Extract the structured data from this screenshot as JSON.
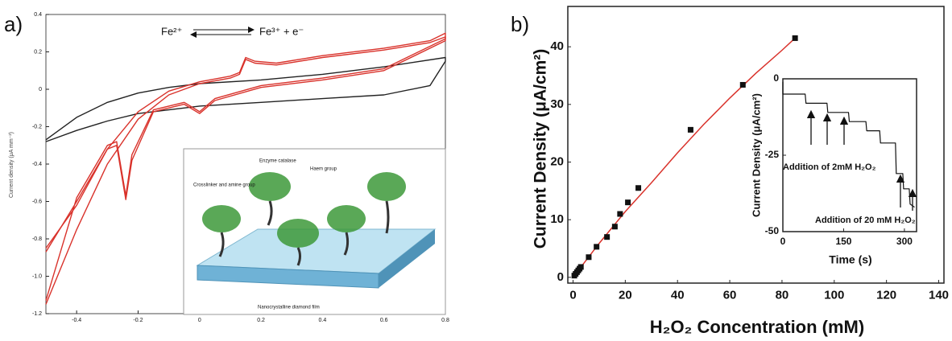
{
  "chart_data": [
    {
      "type": "line",
      "panel_label": "a)",
      "y_label": "Current density (μA mm⁻²)",
      "annotations": [
        "Fe²⁺",
        "Fe³⁺ + e⁻",
        "Enzyme catalase",
        "Haem group",
        "Crosslinker and amine group",
        "Nanocrystalline diamond film"
      ],
      "xlim": [
        -0.5,
        0.8
      ],
      "ylim": [
        -1.2,
        0.4
      ],
      "xticks": [
        -0.4,
        -0.2,
        0,
        0.2,
        0.4,
        0.6,
        0.8
      ],
      "yticks": [
        0.4,
        0.2,
        0,
        -0.2,
        -0.4,
        -0.6,
        -0.8,
        {
          "value": -1,
          "label": "-1.0"
        },
        -1.2
      ],
      "series": [
        {
          "color": "#222222",
          "x": [
            -0.5,
            -0.4,
            -0.3,
            -0.2,
            -0.1,
            0,
            0.2,
            0.4,
            0.6,
            0.8,
            0.8,
            0.75,
            0.6,
            0.4,
            0.2,
            0,
            -0.2,
            -0.3,
            -0.4,
            -0.5
          ],
          "values": [
            -0.27,
            -0.15,
            -0.07,
            -0.02,
            0.01,
            0.03,
            0.05,
            0.08,
            0.12,
            0.17,
            0.15,
            0.02,
            -0.03,
            -0.05,
            -0.07,
            -0.09,
            -0.13,
            -0.17,
            -0.22,
            -0.28
          ]
        },
        {
          "color": "#d9322b",
          "x": [
            -0.5,
            -0.4,
            -0.3,
            -0.2,
            -0.1,
            0,
            0.1,
            0.13,
            0.15,
            0.18,
            0.25,
            0.4,
            0.6,
            0.75,
            0.8,
            0.8,
            0.6,
            0.4,
            0.2,
            0.05,
            0,
            -0.05,
            -0.15,
            -0.22,
            -0.24,
            -0.27,
            -0.3,
            -0.4,
            -0.5
          ],
          "values": [
            -0.87,
            -0.6,
            -0.32,
            -0.12,
            -0.01,
            0.04,
            0.07,
            0.09,
            0.17,
            0.15,
            0.14,
            0.18,
            0.22,
            0.26,
            0.3,
            0.27,
            0.11,
            0.06,
            0.02,
            -0.05,
            -0.12,
            -0.07,
            -0.11,
            -0.35,
            -0.57,
            -0.28,
            -0.3,
            -0.58,
            -1.13
          ]
        },
        {
          "color": "#d9322b",
          "x": [
            -0.5,
            -0.4,
            -0.3,
            -0.2,
            -0.1,
            0,
            0.1,
            0.13,
            0.15,
            0.18,
            0.25,
            0.4,
            0.6,
            0.75,
            0.8,
            0.8,
            0.6,
            0.4,
            0.2,
            0.05,
            0,
            -0.05,
            -0.15,
            -0.22,
            -0.24,
            -0.27,
            -0.3,
            -0.4,
            -0.5
          ],
          "values": [
            -1.15,
            -0.75,
            -0.4,
            -0.16,
            -0.03,
            0.03,
            0.06,
            0.08,
            0.16,
            0.14,
            0.13,
            0.17,
            0.21,
            0.25,
            0.28,
            0.26,
            0.1,
            0.05,
            0.01,
            -0.06,
            -0.13,
            -0.08,
            -0.12,
            -0.38,
            -0.59,
            -0.3,
            -0.32,
            -0.62,
            -0.85
          ]
        }
      ]
    },
    {
      "type": "scatter",
      "panel_label": "b)",
      "x_label": "H₂O₂ Concentration (mM)",
      "y_label": "Current Density (μA/cm²)",
      "xlim": [
        -2,
        142
      ],
      "ylim": [
        -1,
        47
      ],
      "xticks": [
        0,
        20,
        40,
        60,
        80,
        100,
        120,
        140
      ],
      "yticks": [
        0,
        10,
        20,
        30,
        40
      ],
      "series": [
        {
          "style": "line",
          "color": "#d9322b",
          "x": [
            0,
            10,
            20,
            30,
            40,
            50,
            60,
            70,
            80,
            85
          ],
          "values": [
            0,
            5.9,
            11.4,
            16.4,
            21.6,
            26.5,
            31.1,
            35.4,
            39.4,
            41.5
          ]
        },
        {
          "style": "marker",
          "color": "#111111",
          "x": [
            0.5,
            1,
            1.5,
            2,
            2.5,
            3,
            6,
            9,
            13,
            16,
            18,
            21,
            25,
            45,
            65,
            85
          ],
          "values": [
            0.3,
            0.6,
            0.9,
            1.2,
            1.5,
            1.8,
            3.5,
            5.3,
            7,
            8.8,
            11,
            13,
            15.5,
            25.6,
            33.4,
            41.5
          ]
        }
      ]
    },
    {
      "type": "line",
      "x_label": "Time (s)",
      "y_label": "Current Density (μA/cm²)",
      "annotations": [
        "Addition of 2mM H₂O₂",
        "Addition of 20 mM H₂O₂"
      ],
      "xlim": [
        0,
        330
      ],
      "ylim": [
        -50,
        0
      ],
      "xticks": [
        0,
        150,
        300
      ],
      "yticks": [
        0,
        -25,
        -50
      ],
      "series": [
        {
          "color": "#111111",
          "x": [
            0,
            0,
            55,
            57,
            109,
            111,
            162,
            164,
            205,
            207,
            239,
            241,
            278,
            280,
            296,
            298,
            312,
            314,
            325
          ],
          "values": [
            -1,
            -5,
            -5,
            -8,
            -8,
            -11,
            -11,
            -14,
            -14,
            -17,
            -17,
            -21,
            -21,
            -31,
            -31,
            -36,
            -36,
            -41,
            -42
          ]
        }
      ]
    }
  ]
}
